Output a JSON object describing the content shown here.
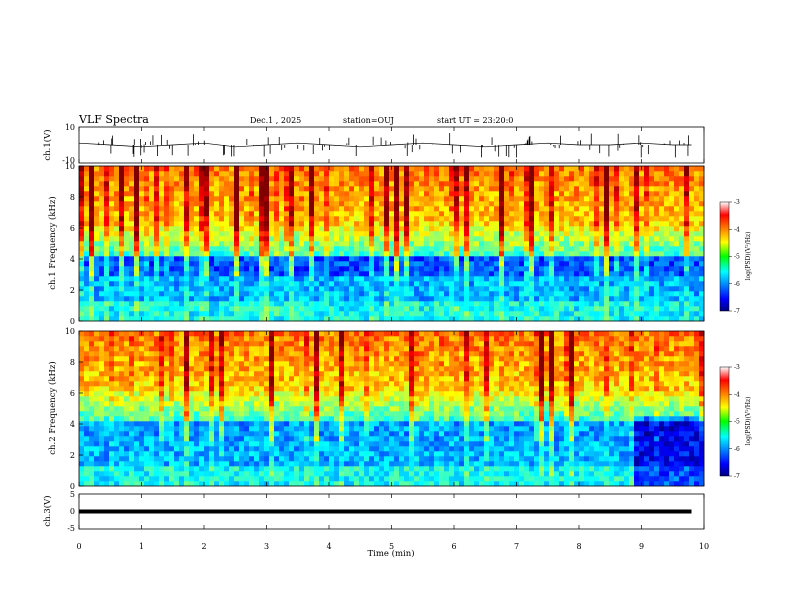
{
  "header": {
    "title": "VLF Spectra",
    "date": "Dec.1 , 2025",
    "station": "station=OUJ",
    "start": "start UT =  23:20:0"
  },
  "chart_data": [
    {
      "type": "line",
      "panel": "ch1-waveform",
      "ylabel": "ch.1(V)",
      "ylim": [
        -10,
        10
      ],
      "yticks": [
        "10",
        "-10"
      ],
      "x": [
        0,
        0.5,
        1,
        1.5,
        2,
        2.5,
        3,
        3.5,
        4,
        4.5,
        5,
        5.5,
        6,
        6.5,
        7,
        7.5,
        8,
        8.5,
        9,
        9.5,
        9.8
      ],
      "y": [
        1,
        0,
        -1,
        0,
        1,
        -1,
        0,
        1,
        0,
        -1,
        0,
        1,
        0,
        -1,
        0,
        1,
        0,
        0,
        1,
        0,
        0
      ],
      "xlim": [
        0,
        10
      ]
    },
    {
      "type": "heatmap",
      "panel": "ch1-spectrogram",
      "ylabel": "ch.1 Frequency (kHz)",
      "ylim": [
        0,
        10
      ],
      "yticks": [
        "0",
        "2",
        "4",
        "6",
        "8",
        "10"
      ],
      "xlim": [
        0,
        10
      ],
      "colorbar": {
        "label": "log(PSD)(V²/Hz)",
        "range": [
          -7,
          -3
        ],
        "ticks": [
          "-3",
          "-4",
          "-5",
          "-6",
          "-7"
        ]
      }
    },
    {
      "type": "heatmap",
      "panel": "ch2-spectrogram",
      "ylabel": "ch.2 Frequency (kHz)",
      "ylim": [
        0,
        10
      ],
      "yticks": [
        "0",
        "2",
        "4",
        "6",
        "8",
        "10"
      ],
      "xlim": [
        0,
        10
      ],
      "colorbar": {
        "label": "log(PSD)(V²/Hz)",
        "range": [
          -7,
          -3
        ],
        "ticks": [
          "-3",
          "-4",
          "-5",
          "-6",
          "-7"
        ]
      }
    },
    {
      "type": "line",
      "panel": "ch3-waveform",
      "ylabel": "ch.3(V)",
      "ylim": [
        -5,
        5
      ],
      "yticks": [
        "5",
        "0",
        "-5"
      ],
      "x": [
        0,
        9.8
      ],
      "y": [
        0,
        0
      ],
      "xlim": [
        0,
        10
      ],
      "xlabel": "Time (min)",
      "xticks": [
        "0",
        "1",
        "2",
        "3",
        "4",
        "5",
        "6",
        "7",
        "8",
        "9",
        "10"
      ]
    }
  ]
}
